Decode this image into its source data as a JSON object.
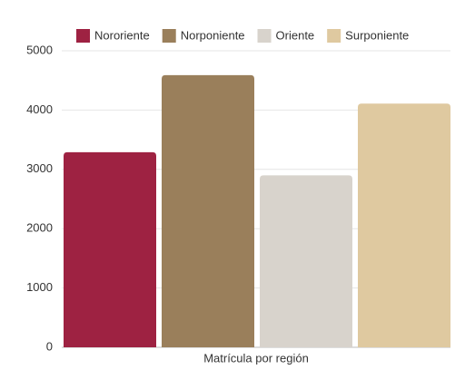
{
  "chart_data": {
    "type": "bar",
    "categories": [
      "Matrícula por región"
    ],
    "series": [
      {
        "name": "Nororiente",
        "color": "#9e2242",
        "values": [
          3290
        ]
      },
      {
        "name": "Norponiente",
        "color": "#9a7f5b",
        "values": [
          4590
        ]
      },
      {
        "name": "Oriente",
        "color": "#d8d3cc",
        "values": [
          2900
        ]
      },
      {
        "name": "Surponiente",
        "color": "#dfc9a0",
        "values": [
          4110
        ]
      }
    ],
    "ylim": [
      0,
      5000
    ],
    "yticks": [
      0,
      1000,
      2000,
      3000,
      4000,
      5000
    ],
    "grid": true,
    "legend": "top"
  }
}
